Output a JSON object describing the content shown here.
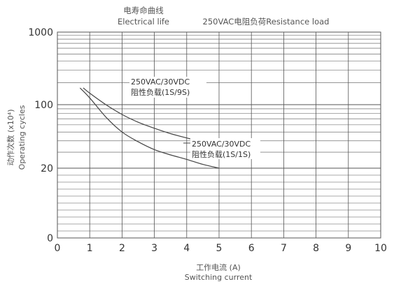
{
  "chart_data": {
    "type": "line",
    "title_cn": "电寿命曲线",
    "title_en": "Electrical life",
    "subtitle": "250VAC电阻负荷Resistance load",
    "xlabel_cn": "工作电流 (A)",
    "xlabel_en": "Switching current",
    "ylabel_cn": "动作次数 (x10⁴)",
    "ylabel_en": "Operating cycles",
    "x_ticks": [
      "0",
      "1",
      "2",
      "3",
      "4",
      "5",
      "6",
      "7",
      "8",
      "9",
      "10"
    ],
    "xlim": [
      0,
      10
    ],
    "y_ticks": [
      {
        "value": 0,
        "label": "0"
      },
      {
        "value": 20,
        "label": "20"
      },
      {
        "value": 100,
        "label": "100"
      },
      {
        "value": 1000,
        "label": "1000"
      }
    ],
    "y_scale": "piecewise",
    "grid": true,
    "series": [
      {
        "label_line1": "250VAC/30VDC",
        "label_line2": "阻性负载(1S/9S)",
        "x": [
          0.8,
          1.0,
          1.5,
          2.0,
          2.5,
          3.0,
          3.5,
          4.0,
          4.5,
          5.0
        ],
        "y": [
          170,
          144,
          100,
          78,
          64,
          55,
          48,
          43,
          39,
          35
        ]
      },
      {
        "label_line1": "250VAC/30VDC",
        "label_line2": "阻性负载(1S/1S)",
        "x": [
          0.7,
          1.0,
          1.5,
          2.0,
          2.5,
          3.0,
          3.5,
          4.0,
          4.5,
          5.0
        ],
        "y": [
          170,
          124,
          73,
          50,
          39,
          32,
          28,
          25,
          22,
          20
        ]
      }
    ],
    "colors": {
      "grid": "#555555",
      "curve": "#444444",
      "text": "#333333"
    }
  }
}
